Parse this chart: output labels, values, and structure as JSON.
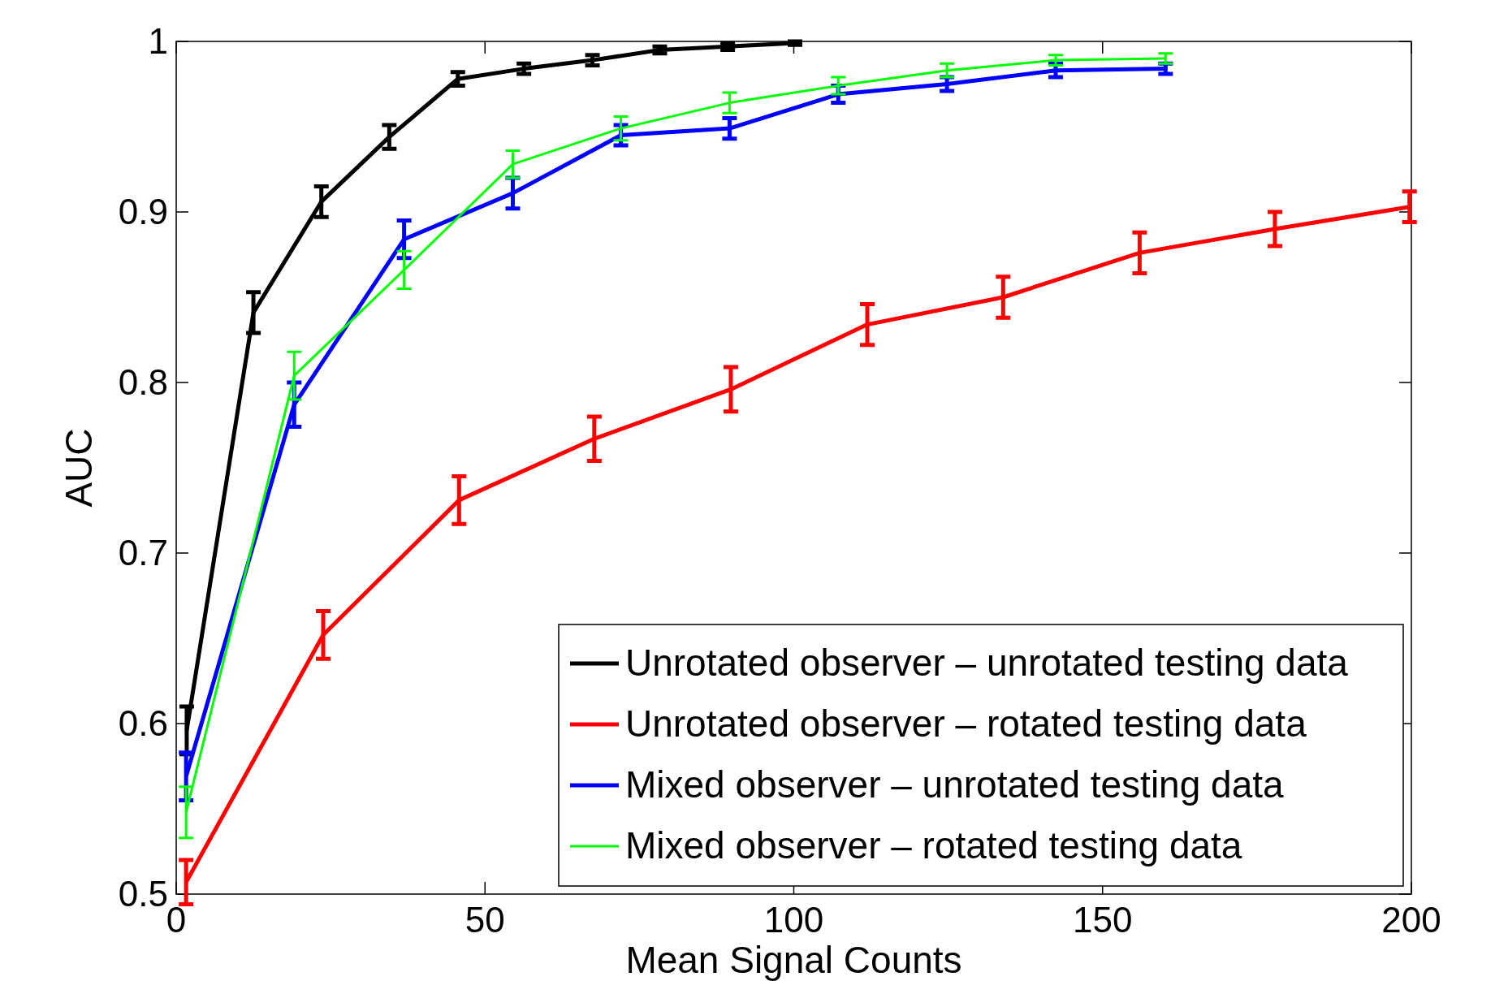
{
  "chart_data": {
    "type": "line",
    "xlabel": "Mean Signal Counts",
    "ylabel": "AUC",
    "xlim": [
      0,
      200
    ],
    "ylim": [
      0.5,
      1
    ],
    "xticks": [
      0,
      50,
      100,
      150,
      200
    ],
    "yticks": [
      {
        "value": 0.5,
        "label": "0.5"
      },
      {
        "value": 0.6,
        "label": "0.6"
      },
      {
        "value": 0.7,
        "label": "0.7"
      },
      {
        "value": 0.8,
        "label": "0.8"
      },
      {
        "value": 0.9,
        "label": "0.9"
      },
      {
        "value": 1,
        "label": "1"
      }
    ],
    "grid": false,
    "legend": "bottom right",
    "marker": "none",
    "line_style": "solid",
    "series": [
      {
        "name": "Unrotated observer – unrotated testing data",
        "color": "#000000",
        "x": [
          1.7,
          12.5,
          23.5,
          34.5,
          45.6,
          56.3,
          67.4,
          78.3,
          89.3,
          100.2
        ],
        "values": [
          0.596,
          0.841,
          0.906,
          0.944,
          0.978,
          0.984,
          0.989,
          0.995,
          0.997,
          0.999
        ],
        "errors": [
          0.014,
          0.012,
          0.009,
          0.007,
          0.004,
          0.003,
          0.003,
          0.002,
          0.002,
          0.001
        ]
      },
      {
        "name": "Unrotated observer – rotated testing data",
        "color": "#ff0000",
        "x": [
          1.6,
          23.8,
          45.8,
          67.7,
          89.8,
          111.9,
          133.9,
          156,
          177.9,
          199.7
        ],
        "values": [
          0.507,
          0.652,
          0.731,
          0.767,
          0.796,
          0.834,
          0.85,
          0.876,
          0.89,
          0.903
        ],
        "errors": [
          0.013,
          0.014,
          0.014,
          0.013,
          0.013,
          0.012,
          0.012,
          0.012,
          0.01,
          0.009
        ]
      },
      {
        "name": "Mixed observer – unrotated testing data",
        "color": "#0000ff",
        "x": [
          1.6,
          19.1,
          36.9,
          54.5,
          72,
          89.6,
          107.2,
          124.8,
          142.4,
          160.2
        ],
        "values": [
          0.569,
          0.787,
          0.884,
          0.911,
          0.945,
          0.949,
          0.969,
          0.975,
          0.983,
          0.984
        ],
        "errors": [
          0.014,
          0.013,
          0.011,
          0.009,
          0.006,
          0.006,
          0.005,
          0.004,
          0.004,
          0.003
        ]
      },
      {
        "name": "Mixed observer – rotated testing data",
        "color": "#00ff00",
        "x": [
          1.6,
          19.1,
          36.9,
          54.5,
          72,
          89.6,
          107.2,
          124.8,
          142.4,
          160.2
        ],
        "values": [
          0.548,
          0.804,
          0.866,
          0.928,
          0.949,
          0.964,
          0.974,
          0.983,
          0.989,
          0.99
        ],
        "errors": [
          0.015,
          0.014,
          0.011,
          0.008,
          0.007,
          0.006,
          0.005,
          0.004,
          0.003,
          0.003
        ]
      }
    ]
  }
}
